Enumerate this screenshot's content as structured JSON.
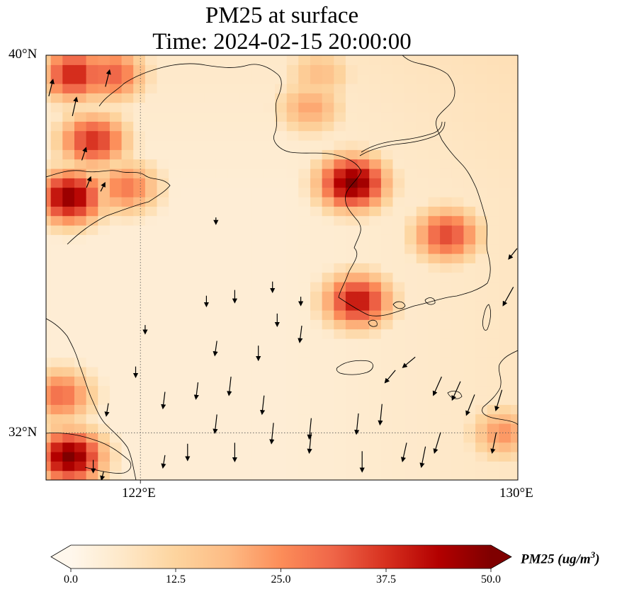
{
  "title": {
    "line1": "PM25 at surface",
    "line2": "Time: 2024-02-15 20:00:00"
  },
  "map": {
    "lat_ticks": [
      "40°N",
      "32°N"
    ],
    "lon_ticks": [
      "122°E",
      "130°E"
    ],
    "extent": {
      "lon_min": 120,
      "lon_max": 130,
      "lat_min": 31,
      "lat_max": 40
    },
    "gridlines": {
      "lons": [
        122
      ],
      "lats": [
        32
      ],
      "style": "dotted"
    },
    "field": "PM25",
    "units": "ug/m^3"
  },
  "colorbar": {
    "label_prefix": "PM25 (ug/m",
    "label_sup": "3",
    "label_suffix": ")",
    "ticks": [
      "0.0",
      "12.5",
      "25.0",
      "37.5",
      "50.0"
    ],
    "min": 0,
    "max": 50,
    "extend": "both",
    "colormap": "OrRd",
    "colors": [
      "#fff7ec",
      "#fee8c8",
      "#fdd49e",
      "#fdbb84",
      "#fc8d59",
      "#ef6548",
      "#d7301f",
      "#b30000",
      "#7f0000"
    ]
  },
  "chart_data": {
    "type": "heatmap",
    "variable": "PM25",
    "units": "ug/m^3",
    "hotspots": [
      {
        "lon": 126.5,
        "lat": 37.3,
        "value": 50
      },
      {
        "lon": 126.6,
        "lat": 34.8,
        "value": 42
      },
      {
        "lon": 128.5,
        "lat": 36.2,
        "value": 35
      },
      {
        "lon": 120.5,
        "lat": 37.0,
        "value": 48
      },
      {
        "lon": 120.6,
        "lat": 39.6,
        "value": 40
      },
      {
        "lon": 121.0,
        "lat": 38.2,
        "value": 38
      },
      {
        "lon": 120.5,
        "lat": 31.5,
        "value": 50
      },
      {
        "lon": 120.3,
        "lat": 32.8,
        "value": 30
      },
      {
        "lon": 121.4,
        "lat": 39.6,
        "value": 32
      },
      {
        "lon": 125.6,
        "lat": 38.9,
        "value": 22
      },
      {
        "lon": 125.8,
        "lat": 39.6,
        "value": 18
      },
      {
        "lon": 129.7,
        "lat": 32.0,
        "value": 24
      },
      {
        "lon": 121.7,
        "lat": 37.2,
        "value": 28
      }
    ],
    "wind_vectors": [
      {
        "lon": 120.1,
        "lat": 39.3,
        "u": 0.2,
        "v": 0.8
      },
      {
        "lon": 120.6,
        "lat": 38.9,
        "u": 0.2,
        "v": 0.9
      },
      {
        "lon": 121.3,
        "lat": 39.5,
        "u": 0.2,
        "v": 0.8
      },
      {
        "lon": 120.8,
        "lat": 37.9,
        "u": 0.2,
        "v": 0.6
      },
      {
        "lon": 120.9,
        "lat": 37.3,
        "u": 0.2,
        "v": 0.5
      },
      {
        "lon": 121.2,
        "lat": 37.2,
        "u": 0.2,
        "v": 0.4
      },
      {
        "lon": 123.6,
        "lat": 36.5,
        "u": 0.0,
        "v": -0.3
      },
      {
        "lon": 123.4,
        "lat": 34.8,
        "u": 0.0,
        "v": -0.5
      },
      {
        "lon": 124.0,
        "lat": 34.9,
        "u": 0.0,
        "v": -0.6
      },
      {
        "lon": 124.9,
        "lat": 34.4,
        "u": 0.0,
        "v": -0.6
      },
      {
        "lon": 123.6,
        "lat": 33.8,
        "u": -0.1,
        "v": -0.7
      },
      {
        "lon": 124.5,
        "lat": 33.7,
        "u": 0.0,
        "v": -0.7
      },
      {
        "lon": 125.4,
        "lat": 34.1,
        "u": -0.1,
        "v": -0.8
      },
      {
        "lon": 121.9,
        "lat": 33.3,
        "u": 0.0,
        "v": -0.5
      },
      {
        "lon": 122.5,
        "lat": 32.7,
        "u": -0.1,
        "v": -0.8
      },
      {
        "lon": 123.2,
        "lat": 32.9,
        "u": -0.1,
        "v": -0.8
      },
      {
        "lon": 123.9,
        "lat": 33.0,
        "u": -0.1,
        "v": -0.9
      },
      {
        "lon": 124.6,
        "lat": 32.6,
        "u": -0.1,
        "v": -0.9
      },
      {
        "lon": 121.3,
        "lat": 32.5,
        "u": -0.1,
        "v": -0.6
      },
      {
        "lon": 123.6,
        "lat": 32.2,
        "u": -0.1,
        "v": -0.9
      },
      {
        "lon": 124.8,
        "lat": 32.0,
        "u": -0.1,
        "v": -1.0
      },
      {
        "lon": 125.6,
        "lat": 32.1,
        "u": -0.1,
        "v": -1.0
      },
      {
        "lon": 123.0,
        "lat": 31.6,
        "u": 0.0,
        "v": -0.8
      },
      {
        "lon": 124.0,
        "lat": 31.6,
        "u": 0.0,
        "v": -0.9
      },
      {
        "lon": 125.6,
        "lat": 31.8,
        "u": -0.1,
        "v": -1.0
      },
      {
        "lon": 126.6,
        "lat": 32.2,
        "u": -0.1,
        "v": -1.0
      },
      {
        "lon": 127.1,
        "lat": 32.4,
        "u": -0.1,
        "v": -1.0
      },
      {
        "lon": 126.7,
        "lat": 31.4,
        "u": 0.0,
        "v": -1.0
      },
      {
        "lon": 127.6,
        "lat": 31.6,
        "u": -0.2,
        "v": -0.9
      },
      {
        "lon": 128.0,
        "lat": 31.5,
        "u": -0.2,
        "v": -1.0
      },
      {
        "lon": 128.3,
        "lat": 31.8,
        "u": -0.3,
        "v": -1.0
      },
      {
        "lon": 128.3,
        "lat": 33.0,
        "u": -0.4,
        "v": -0.9
      },
      {
        "lon": 128.7,
        "lat": 32.9,
        "u": -0.4,
        "v": -0.9
      },
      {
        "lon": 129.0,
        "lat": 32.6,
        "u": -0.4,
        "v": -1.0
      },
      {
        "lon": 129.6,
        "lat": 32.7,
        "u": -0.3,
        "v": -1.0
      },
      {
        "lon": 129.5,
        "lat": 31.8,
        "u": -0.2,
        "v": -1.0
      },
      {
        "lon": 129.8,
        "lat": 34.9,
        "u": -0.5,
        "v": -0.9
      },
      {
        "lon": 129.9,
        "lat": 35.8,
        "u": -0.4,
        "v": -0.5
      },
      {
        "lon": 127.7,
        "lat": 33.5,
        "u": -0.6,
        "v": -0.5
      },
      {
        "lon": 127.3,
        "lat": 33.2,
        "u": -0.5,
        "v": -0.6
      },
      {
        "lon": 122.1,
        "lat": 34.2,
        "u": 0.0,
        "v": -0.4
      },
      {
        "lon": 125.4,
        "lat": 34.8,
        "u": 0.0,
        "v": -0.4
      },
      {
        "lon": 124.8,
        "lat": 35.1,
        "u": 0.0,
        "v": -0.5
      },
      {
        "lon": 122.5,
        "lat": 31.4,
        "u": -0.1,
        "v": -0.6
      },
      {
        "lon": 121.0,
        "lat": 31.3,
        "u": 0.0,
        "v": -0.6
      },
      {
        "lon": 121.2,
        "lat": 31.1,
        "u": -0.1,
        "v": -0.4
      }
    ]
  }
}
